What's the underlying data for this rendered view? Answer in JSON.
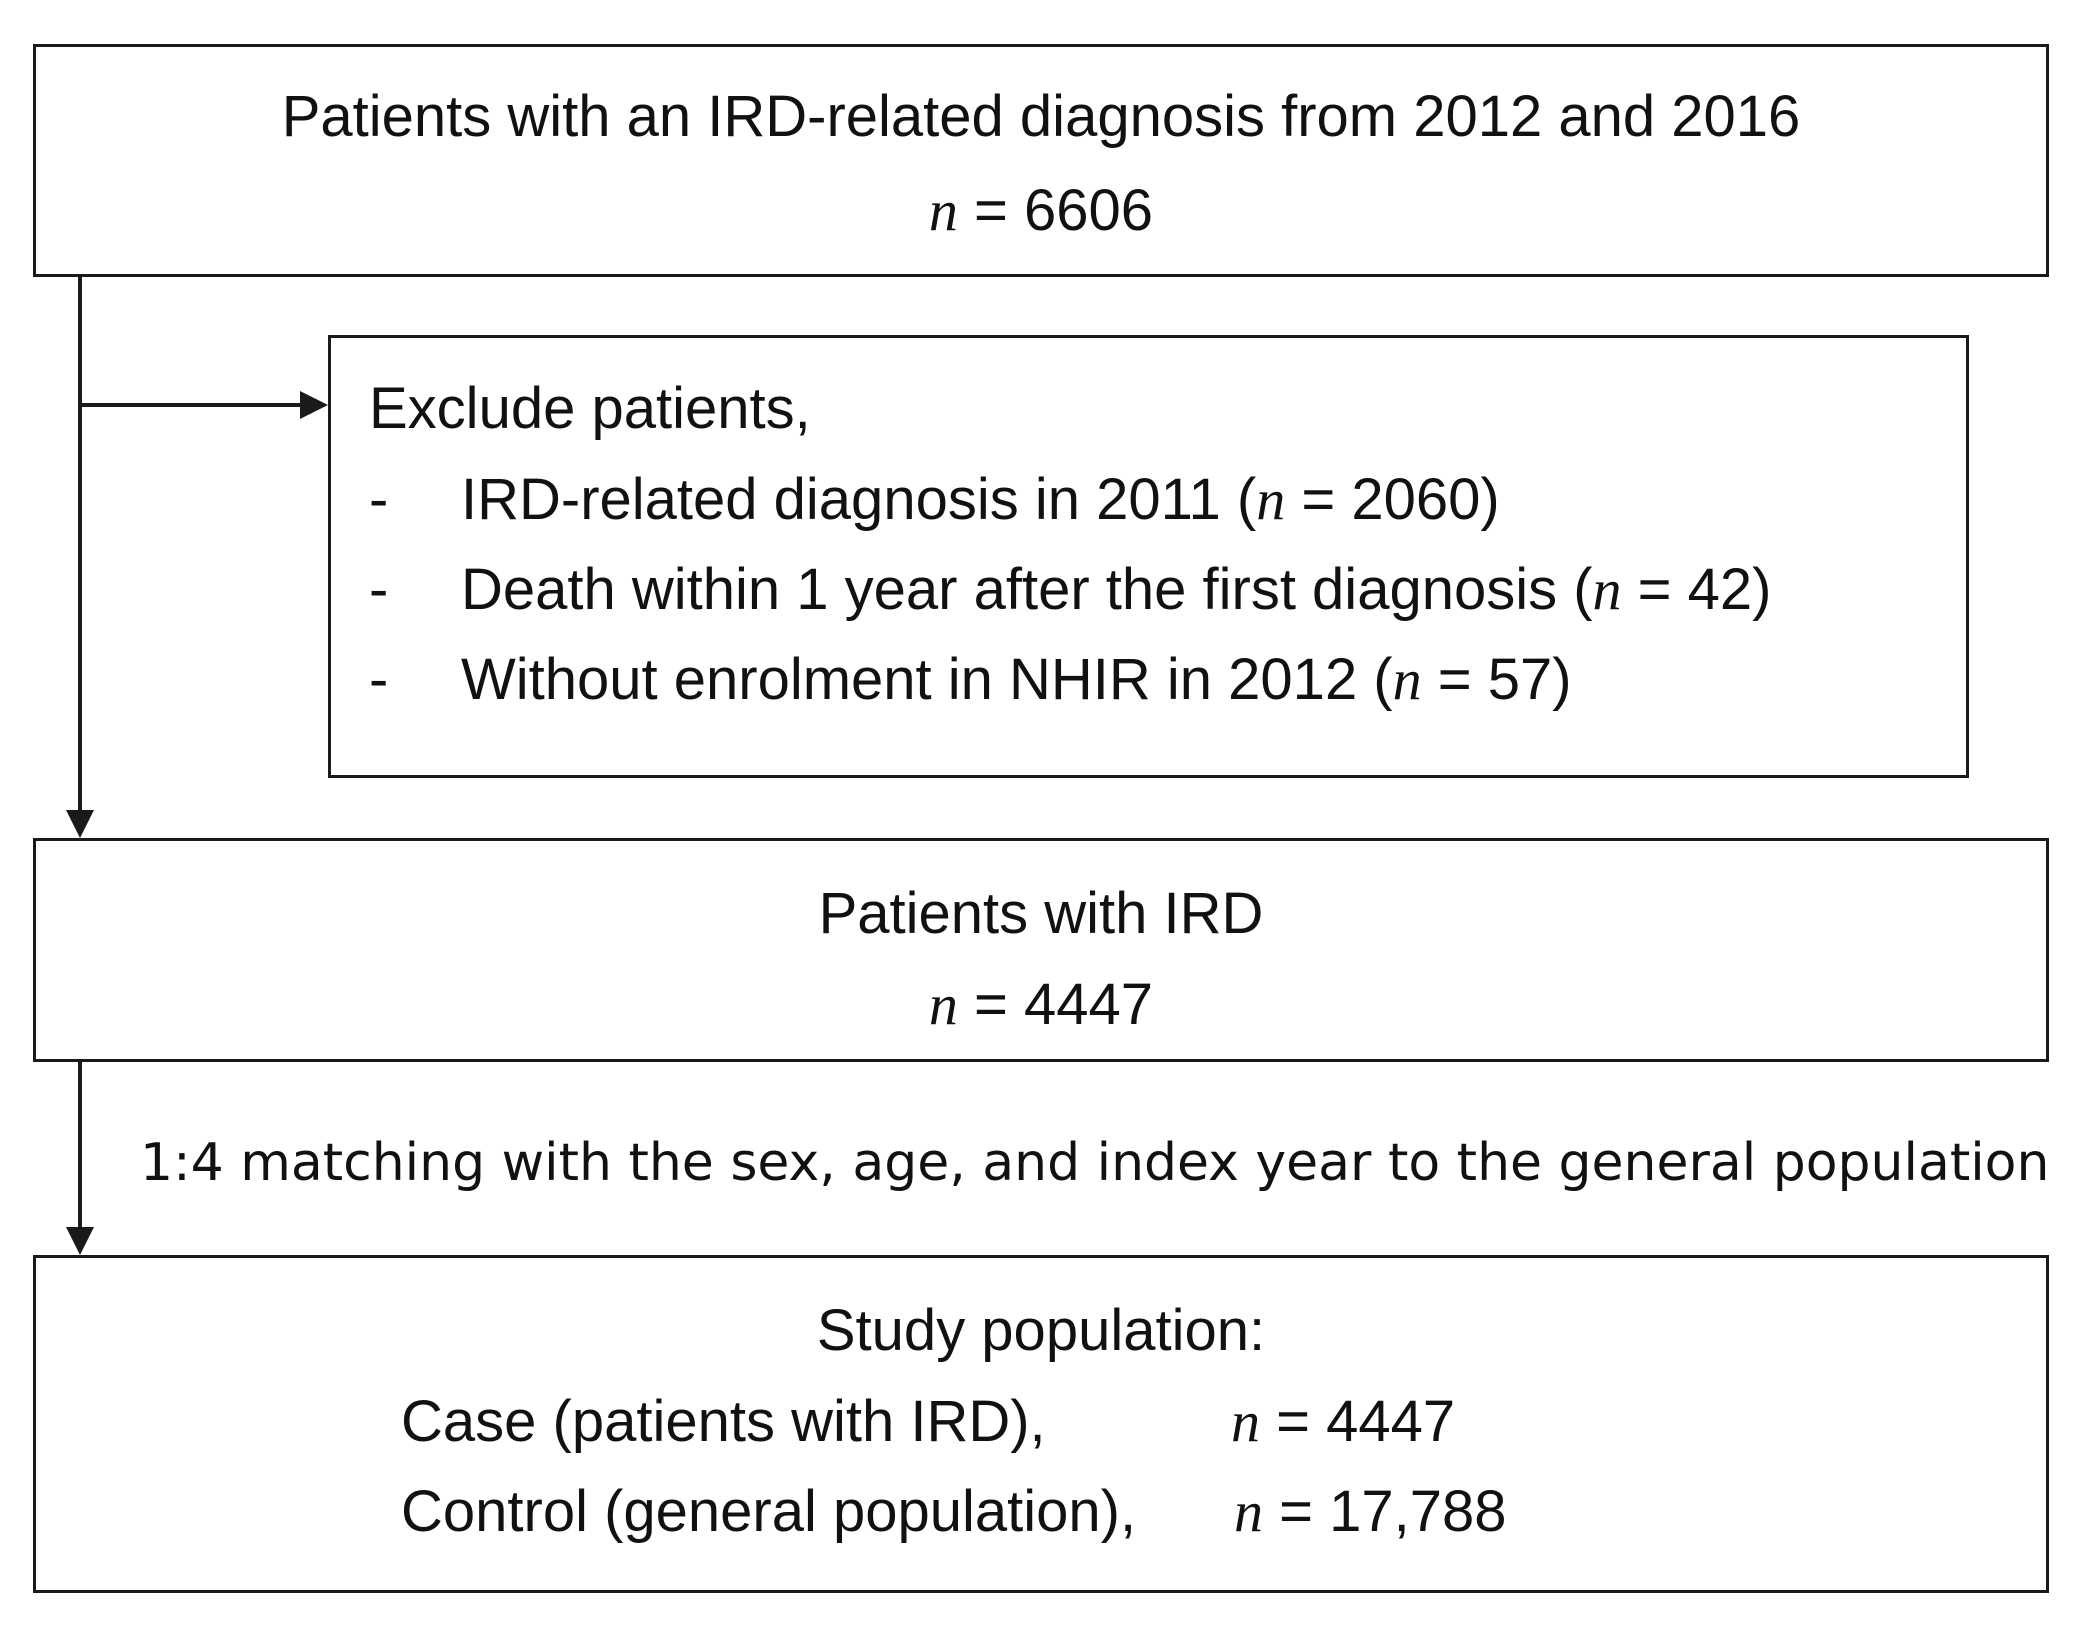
{
  "top_box": {
    "line1": "Patients with an IRD-related diagnosis from 2012 and 2016",
    "n_symbol": "n",
    "n_value": "= 6606"
  },
  "exclude_box": {
    "heading": "Exclude patients,",
    "items": [
      {
        "bullet": "-",
        "text_before": "IRD-related diagnosis in 2011 (",
        "n_symbol": "n",
        "text_after": " = 2060)"
      },
      {
        "bullet": "-",
        "text_before": "Death within 1 year after the first diagnosis (",
        "n_symbol": "n",
        "text_after": " = 42)"
      },
      {
        "bullet": "-",
        "text_before": "Without enrolment in NHIR in 2012 (",
        "n_symbol": "n",
        "text_after": " = 57)"
      }
    ]
  },
  "ird_box": {
    "line1": "Patients with IRD",
    "n_symbol": "n",
    "n_value": "= 4447"
  },
  "matching_label": "1:4 matching with the sex, age, and index year to the general population",
  "study_box": {
    "heading": "Study population:",
    "case_label": "Case (patients with IRD),",
    "case_n_symbol": "n",
    "case_n_value": "= 4447",
    "control_label": "Control (general population),",
    "control_n_symbol": "n",
    "control_n_value": "= 17,788"
  },
  "colors": {
    "line": "#1a1a1a",
    "text": "#111111",
    "background": "#ffffff"
  }
}
